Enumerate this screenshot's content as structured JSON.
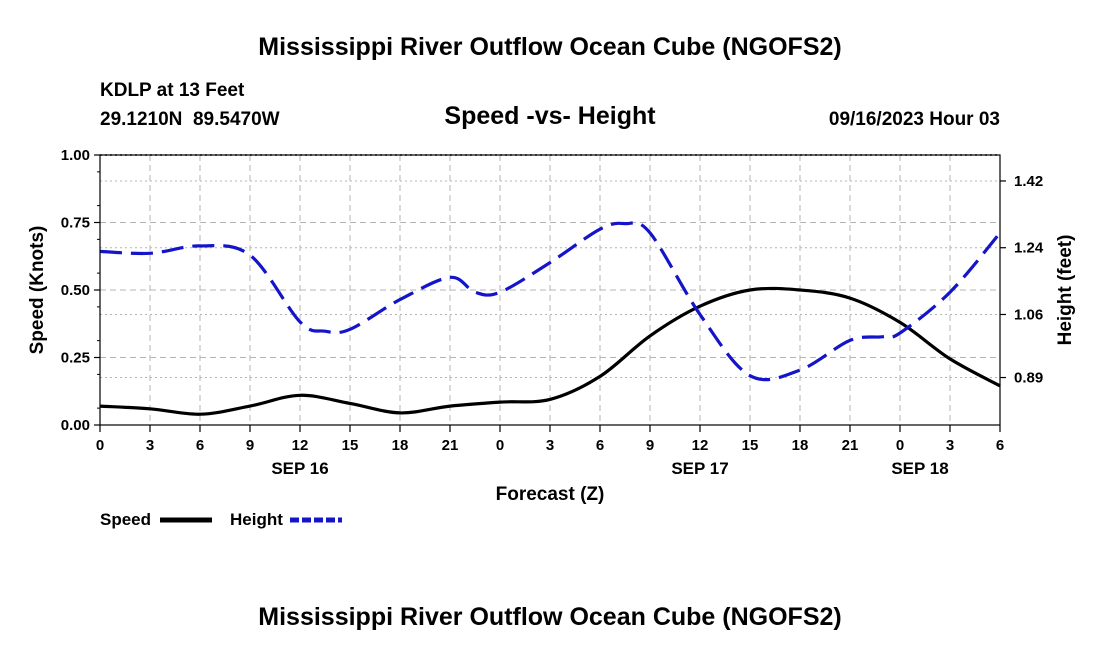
{
  "header": {
    "title": "Mississippi River Outflow Ocean Cube (NGOFS2)",
    "station": "KDLP at 13 Feet",
    "location": "29.1210N  89.5470W",
    "datetime": "09/16/2023 Hour 03",
    "footer_title": "Mississippi River Outflow Ocean Cube (NGOFS2)"
  },
  "colors": {
    "speed": "#000000",
    "height": "#1414c8",
    "grid": "#b4b4b4"
  },
  "chart_data": {
    "type": "line",
    "title": "Speed -vs- Height",
    "xlabel": "Forecast (Z)",
    "ylabel": "Speed (Knots)",
    "y2label": "Height (feet)",
    "xlim": [
      0,
      54
    ],
    "ylim": [
      0,
      1
    ],
    "y2lim": [
      0.762,
      1.49
    ],
    "x_ticks": [
      {
        "x": 0,
        "label": "0"
      },
      {
        "x": 3,
        "label": "3"
      },
      {
        "x": 6,
        "label": "6"
      },
      {
        "x": 9,
        "label": "9"
      },
      {
        "x": 12,
        "label": "12"
      },
      {
        "x": 15,
        "label": "15"
      },
      {
        "x": 18,
        "label": "18"
      },
      {
        "x": 21,
        "label": "21"
      },
      {
        "x": 24,
        "label": "0"
      },
      {
        "x": 27,
        "label": "3"
      },
      {
        "x": 30,
        "label": "6"
      },
      {
        "x": 33,
        "label": "9"
      },
      {
        "x": 36,
        "label": "12"
      },
      {
        "x": 39,
        "label": "15"
      },
      {
        "x": 42,
        "label": "18"
      },
      {
        "x": 45,
        "label": "21"
      },
      {
        "x": 48,
        "label": "0"
      },
      {
        "x": 51,
        "label": "3"
      },
      {
        "x": 54,
        "label": "6"
      }
    ],
    "date_labels": [
      {
        "x": 12,
        "label": "SEP 16"
      },
      {
        "x": 36,
        "label": "SEP 17"
      },
      {
        "x": 49.2,
        "label": "SEP 18"
      }
    ],
    "y_ticks": [
      {
        "v": 0.0,
        "label": "0.00"
      },
      {
        "v": 0.25,
        "label": "0.25"
      },
      {
        "v": 0.5,
        "label": "0.50"
      },
      {
        "v": 0.75,
        "label": "0.75"
      },
      {
        "v": 1.0,
        "label": "1.00"
      }
    ],
    "y2_ticks": [
      {
        "v": 0.89,
        "label": "0.89"
      },
      {
        "v": 1.06,
        "label": "1.06"
      },
      {
        "v": 1.24,
        "label": "1.24"
      },
      {
        "v": 1.42,
        "label": "1.42"
      }
    ],
    "series": [
      {
        "name": "Speed",
        "axis": "left",
        "style": "solid",
        "x": [
          0,
          3,
          6,
          9,
          12,
          15,
          18,
          21,
          24,
          27,
          30,
          33,
          36,
          39,
          42,
          45,
          48,
          51,
          54
        ],
        "values": [
          0.07,
          0.06,
          0.04,
          0.07,
          0.11,
          0.08,
          0.045,
          0.07,
          0.085,
          0.095,
          0.18,
          0.33,
          0.44,
          0.5,
          0.5,
          0.47,
          0.38,
          0.245,
          0.145
        ]
      },
      {
        "name": "Height",
        "axis": "right",
        "style": "dashed",
        "x": [
          0,
          3,
          6,
          9,
          12,
          13.5,
          15,
          18,
          21,
          22.5,
          24,
          27,
          30,
          31.5,
          33,
          36,
          39,
          42,
          45,
          47,
          48,
          51,
          54
        ],
        "values": [
          1.23,
          1.225,
          1.245,
          1.22,
          1.04,
          1.015,
          1.02,
          1.1,
          1.16,
          1.12,
          1.12,
          1.2,
          1.29,
          1.305,
          1.28,
          1.06,
          0.895,
          0.91,
          0.99,
          1.0,
          1.01,
          1.12,
          1.28
        ]
      }
    ],
    "legend": [
      {
        "label": "Speed"
      },
      {
        "label": "Height"
      }
    ],
    "legend_position": "bottom-left",
    "grid": true
  }
}
